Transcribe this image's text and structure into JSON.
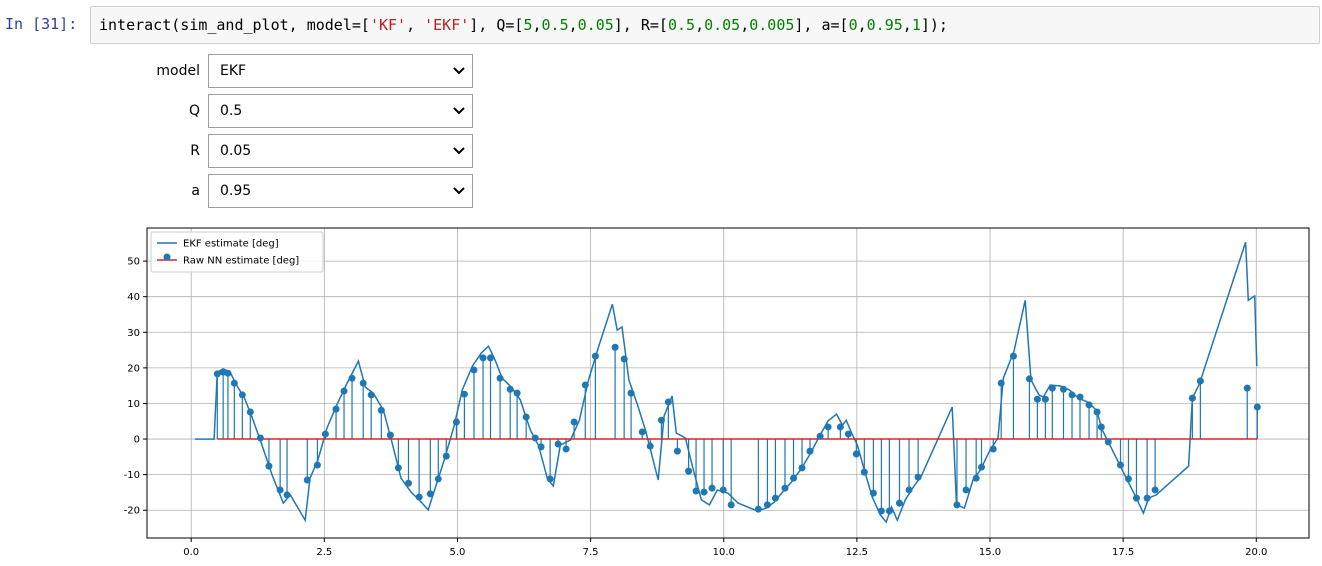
{
  "prompt": "In [31]:",
  "code": "interact(sim_and_plot, model=['KF', 'EKF'], Q=[5,0.5,0.05], R=[0.5,0.05,0.005], a=[0,0.95,1]);",
  "widgets": [
    {
      "label": "model",
      "value": "EKF"
    },
    {
      "label": "Q",
      "value": "0.5"
    },
    {
      "label": "R",
      "value": "0.05"
    },
    {
      "label": "a",
      "value": "0.95"
    }
  ],
  "chart_data": {
    "type": "stem",
    "grid": true,
    "legend": "upper left",
    "xlim": [
      -0.83,
      20.99
    ],
    "ylim": [
      -27.8,
      59.3
    ],
    "xticks": [
      {
        "value": 0,
        "label": "0.0"
      },
      2.5,
      {
        "value": 5,
        "label": "5.0"
      },
      7.5,
      {
        "value": 10,
        "label": "10.0"
      },
      12.5,
      {
        "value": 15,
        "label": "15.0"
      },
      17.5,
      {
        "value": 20,
        "label": "20.0"
      }
    ],
    "yticks": [
      -20,
      -10,
      0,
      10,
      20,
      30,
      40,
      50
    ],
    "series": [
      {
        "name": "EKF estimate [deg]",
        "type": "line",
        "color": "#1f77b4",
        "x": [
          0.07,
          0.43,
          0.49,
          0.6,
          0.73,
          0.85,
          1.0,
          1.15,
          1.33,
          1.52,
          1.73,
          1.86,
          2.14,
          2.23,
          2.38,
          2.55,
          2.74,
          2.91,
          3.14,
          3.27,
          3.42,
          3.61,
          3.76,
          3.94,
          4.13,
          4.3,
          4.45,
          4.6,
          4.75,
          4.94,
          5.09,
          5.28,
          5.45,
          5.58,
          5.69,
          5.84,
          6.01,
          6.18,
          6.37,
          6.52,
          6.69,
          6.8,
          6.93,
          7.12,
          7.29,
          7.46,
          7.66,
          7.91,
          8.0,
          8.09,
          8.22,
          8.38,
          8.53,
          8.77,
          8.88,
          9.03,
          9.11,
          9.28,
          9.43,
          9.58,
          9.73,
          9.88,
          10.08,
          10.27,
          10.63,
          10.8,
          10.95,
          11.12,
          11.27,
          11.44,
          11.61,
          11.78,
          11.96,
          12.12,
          12.23,
          12.3,
          12.41,
          12.51,
          12.64,
          12.79,
          12.94,
          13.05,
          13.15,
          13.26,
          13.41,
          13.56,
          13.71,
          14.29,
          14.37,
          14.52,
          14.68,
          14.82,
          15.0,
          15.15,
          15.25,
          15.45,
          15.66,
          15.77,
          15.92,
          16.0,
          16.13,
          16.32,
          16.49,
          16.66,
          16.83,
          17.0,
          17.11,
          17.26,
          17.41,
          17.56,
          17.71,
          17.88,
          17.98,
          18.12,
          18.73,
          18.8,
          18.93,
          19.8,
          19.85,
          19.97,
          20.01
        ],
        "values": [
          0,
          0,
          18.8,
          19.7,
          18.8,
          15.2,
          11.5,
          5.9,
          -1.7,
          -10.1,
          -18.0,
          -15.7,
          -22.8,
          -11.0,
          -5.9,
          3.1,
          9.8,
          15.2,
          21.9,
          14.6,
          12.9,
          8.1,
          -0.3,
          -11.0,
          -14.9,
          -17.4,
          -19.9,
          -12.9,
          -5.9,
          3.9,
          13.8,
          20.5,
          24.2,
          26.1,
          22.8,
          17.1,
          14.6,
          11.0,
          2.5,
          -1.7,
          -11.2,
          -13.2,
          -1.7,
          -0.3,
          5.3,
          16.6,
          26.4,
          37.9,
          30.6,
          31.5,
          16.6,
          9.6,
          2.5,
          -11.5,
          6.5,
          12.1,
          1.7,
          0.3,
          -8.7,
          -17.1,
          -18.5,
          -14.3,
          -15.2,
          -18.0,
          -20.2,
          -19.4,
          -17.7,
          -14.6,
          -12.1,
          -8.7,
          -4.5,
          0.3,
          5.1,
          7.0,
          3.9,
          5.3,
          1.4,
          -1.7,
          -8.7,
          -16.3,
          -21.3,
          -23.3,
          -19.1,
          -22.8,
          -17.1,
          -13.5,
          -10.4,
          9.0,
          -18.5,
          -19.4,
          -11.5,
          -8.7,
          -3.1,
          0.3,
          17.1,
          24.7,
          39.0,
          16.6,
          12.4,
          11.8,
          15.2,
          14.9,
          13.8,
          11.5,
          10.4,
          8.1,
          2.5,
          -2.0,
          -6.5,
          -11.0,
          -15.4,
          -20.8,
          -16.6,
          -15.7,
          -7.6,
          11.5,
          15.4,
          55.3,
          39.0,
          40.2,
          20.5
        ]
      },
      {
        "name": "Raw NN estimate [deg]",
        "type": "stem",
        "color": "#1f77b4",
        "baseline_color": "#d62728",
        "x": [
          0.49,
          0.6,
          0.69,
          0.81,
          0.96,
          1.11,
          1.3,
          1.46,
          1.67,
          1.8,
          2.18,
          2.37,
          2.52,
          2.72,
          2.87,
          3.02,
          3.23,
          3.38,
          3.57,
          3.74,
          3.89,
          4.08,
          4.28,
          4.49,
          4.64,
          4.79,
          4.98,
          5.13,
          5.31,
          5.48,
          5.62,
          5.8,
          5.99,
          6.12,
          6.29,
          6.46,
          6.57,
          6.74,
          6.89,
          7.04,
          7.19,
          7.4,
          7.59,
          7.96,
          8.13,
          8.26,
          8.47,
          8.62,
          8.83,
          8.96,
          9.13,
          9.34,
          9.48,
          9.63,
          9.78,
          9.99,
          10.14,
          10.65,
          10.82,
          10.97,
          11.15,
          11.31,
          11.47,
          11.62,
          11.81,
          11.96,
          12.19,
          12.34,
          12.49,
          12.64,
          12.81,
          12.96,
          13.11,
          13.3,
          13.48,
          13.65,
          14.38,
          14.55,
          14.74,
          14.84,
          15.06,
          15.21,
          15.44,
          15.74,
          15.89,
          16.04,
          16.17,
          16.38,
          16.54,
          16.69,
          16.86,
          17.01,
          17.09,
          17.22,
          17.45,
          17.6,
          17.75,
          17.95,
          18.1,
          18.8,
          18.95,
          19.83,
          20.02
        ],
        "values": [
          18.3,
          18.8,
          18.5,
          15.7,
          12.4,
          7.6,
          0.3,
          -7.6,
          -14.3,
          -15.7,
          -11.5,
          -7.3,
          1.4,
          8.4,
          13.5,
          17.1,
          15.7,
          12.4,
          8.1,
          1.1,
          -8.1,
          -12.4,
          -16.3,
          -15.4,
          -11.2,
          -4.8,
          4.8,
          12.6,
          19.4,
          22.8,
          22.8,
          17.1,
          14.0,
          12.9,
          6.2,
          0.3,
          -2.2,
          -11.2,
          -1.4,
          -2.8,
          4.8,
          15.2,
          23.3,
          25.8,
          22.5,
          12.9,
          2.0,
          -2.0,
          5.3,
          10.4,
          -3.4,
          -9.0,
          -14.6,
          -14.9,
          -13.8,
          -14.3,
          -18.5,
          -19.7,
          -18.5,
          -16.6,
          -13.8,
          -11.0,
          -8.1,
          -3.4,
          0.8,
          3.4,
          3.4,
          1.4,
          -4.2,
          -9.3,
          -15.2,
          -20.2,
          -20.2,
          -18.0,
          -14.3,
          -10.7,
          -18.5,
          -14.3,
          -11.0,
          -7.9,
          -2.8,
          15.7,
          23.3,
          16.9,
          11.2,
          11.2,
          14.3,
          14.0,
          12.4,
          11.8,
          9.6,
          7.6,
          3.4,
          -0.8,
          -7.3,
          -11.2,
          -16.6,
          -16.6,
          -14.3,
          11.5,
          16.3,
          14.3,
          9.0
        ]
      }
    ]
  }
}
